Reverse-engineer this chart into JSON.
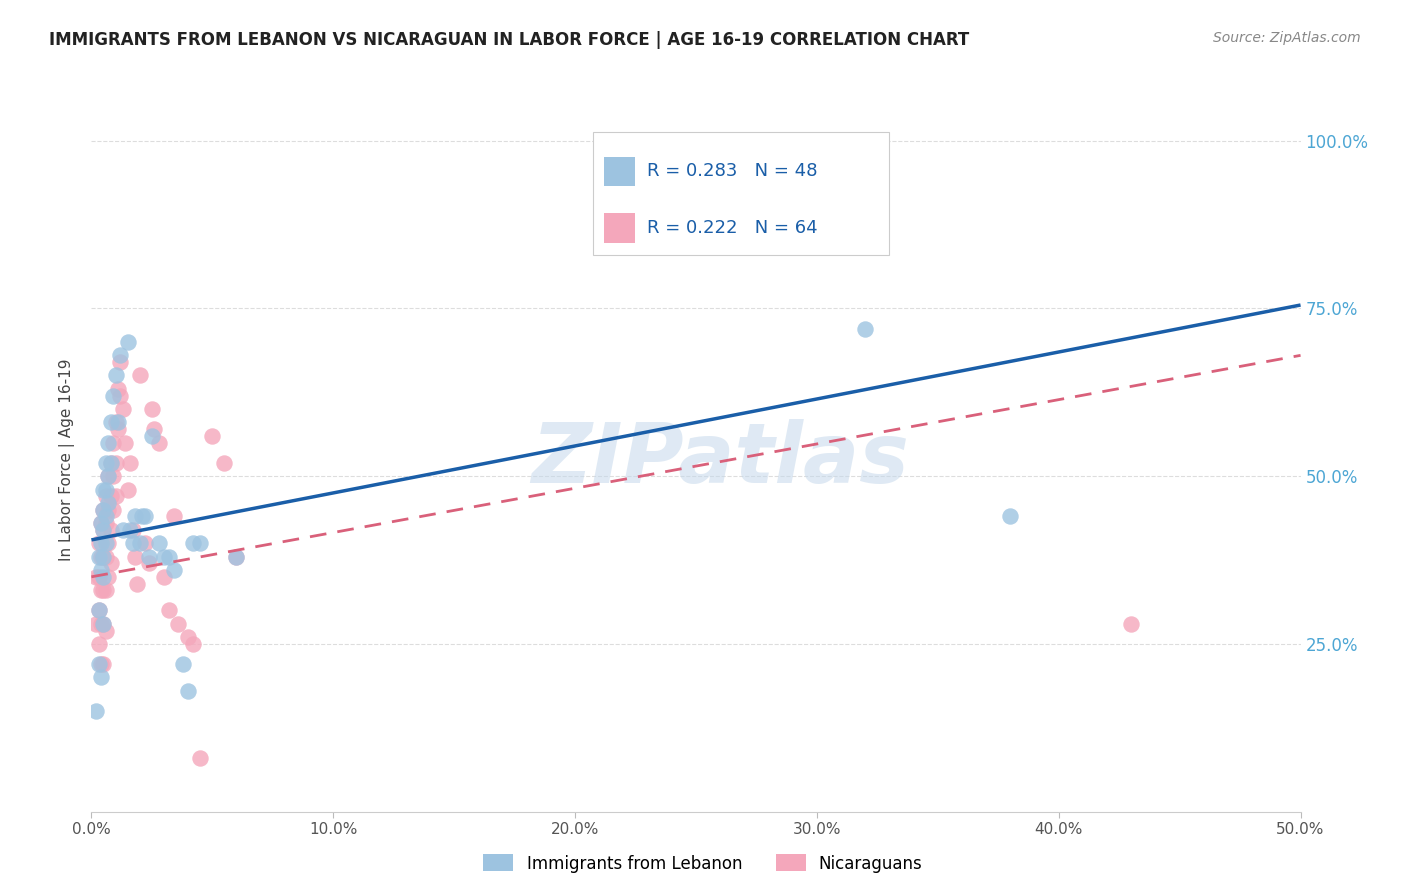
{
  "title": "IMMIGRANTS FROM LEBANON VS NICARAGUAN IN LABOR FORCE | AGE 16-19 CORRELATION CHART",
  "source_text": "Source: ZipAtlas.com",
  "ylabel": "In Labor Force | Age 16-19",
  "xlim": [
    0.0,
    0.5
  ],
  "ylim": [
    0.0,
    1.05
  ],
  "xtick_labels": [
    "0.0%",
    "10.0%",
    "20.0%",
    "30.0%",
    "40.0%",
    "50.0%"
  ],
  "xtick_values": [
    0.0,
    0.1,
    0.2,
    0.3,
    0.4,
    0.5
  ],
  "ytick_labels": [
    "25.0%",
    "50.0%",
    "75.0%",
    "100.0%"
  ],
  "ytick_values": [
    0.25,
    0.5,
    0.75,
    1.0
  ],
  "legend_r1": "R = 0.283",
  "legend_n1": "N = 48",
  "legend_r2": "R = 0.222",
  "legend_n2": "N = 64",
  "legend_label1": "Immigrants from Lebanon",
  "legend_label2": "Nicaraguans",
  "watermark": "ZIPatlas",
  "blue_dot_color": "#9dc3e0",
  "pink_dot_color": "#f4a7bb",
  "blue_line_color": "#1a5ea8",
  "pink_line_color": "#d9607a",
  "legend_text_color": "#1a5ea8",
  "title_color": "#222222",
  "ytick_color": "#4da6d4",
  "background_color": "#ffffff",
  "grid_color": "#dddddd",
  "lebanon_x": [
    0.002,
    0.003,
    0.003,
    0.003,
    0.004,
    0.004,
    0.004,
    0.004,
    0.005,
    0.005,
    0.005,
    0.005,
    0.005,
    0.005,
    0.006,
    0.006,
    0.006,
    0.006,
    0.007,
    0.007,
    0.007,
    0.008,
    0.008,
    0.009,
    0.01,
    0.011,
    0.012,
    0.013,
    0.015,
    0.016,
    0.017,
    0.018,
    0.02,
    0.021,
    0.022,
    0.024,
    0.025,
    0.028,
    0.03,
    0.032,
    0.034,
    0.038,
    0.04,
    0.042,
    0.045,
    0.06,
    0.32,
    0.38
  ],
  "lebanon_y": [
    0.15,
    0.38,
    0.3,
    0.22,
    0.43,
    0.4,
    0.36,
    0.2,
    0.48,
    0.45,
    0.42,
    0.38,
    0.35,
    0.28,
    0.52,
    0.48,
    0.44,
    0.4,
    0.55,
    0.5,
    0.46,
    0.58,
    0.52,
    0.62,
    0.65,
    0.58,
    0.68,
    0.42,
    0.7,
    0.42,
    0.4,
    0.44,
    0.4,
    0.44,
    0.44,
    0.38,
    0.56,
    0.4,
    0.38,
    0.38,
    0.36,
    0.22,
    0.18,
    0.4,
    0.4,
    0.38,
    0.72,
    0.44
  ],
  "nicaragua_x": [
    0.002,
    0.002,
    0.003,
    0.003,
    0.003,
    0.003,
    0.004,
    0.004,
    0.004,
    0.004,
    0.004,
    0.005,
    0.005,
    0.005,
    0.005,
    0.005,
    0.005,
    0.006,
    0.006,
    0.006,
    0.006,
    0.006,
    0.007,
    0.007,
    0.007,
    0.007,
    0.008,
    0.008,
    0.008,
    0.008,
    0.009,
    0.009,
    0.009,
    0.01,
    0.01,
    0.01,
    0.011,
    0.011,
    0.012,
    0.012,
    0.013,
    0.014,
    0.015,
    0.016,
    0.017,
    0.018,
    0.019,
    0.02,
    0.022,
    0.024,
    0.025,
    0.026,
    0.028,
    0.03,
    0.032,
    0.034,
    0.036,
    0.04,
    0.042,
    0.045,
    0.05,
    0.055,
    0.06,
    0.43
  ],
  "nicaragua_y": [
    0.35,
    0.28,
    0.4,
    0.35,
    0.3,
    0.25,
    0.43,
    0.38,
    0.33,
    0.28,
    0.22,
    0.45,
    0.42,
    0.38,
    0.33,
    0.28,
    0.22,
    0.47,
    0.43,
    0.38,
    0.33,
    0.27,
    0.5,
    0.45,
    0.4,
    0.35,
    0.52,
    0.47,
    0.42,
    0.37,
    0.55,
    0.5,
    0.45,
    0.58,
    0.52,
    0.47,
    0.63,
    0.57,
    0.67,
    0.62,
    0.6,
    0.55,
    0.48,
    0.52,
    0.42,
    0.38,
    0.34,
    0.65,
    0.4,
    0.37,
    0.6,
    0.57,
    0.55,
    0.35,
    0.3,
    0.44,
    0.28,
    0.26,
    0.25,
    0.08,
    0.56,
    0.52,
    0.38,
    0.28
  ]
}
